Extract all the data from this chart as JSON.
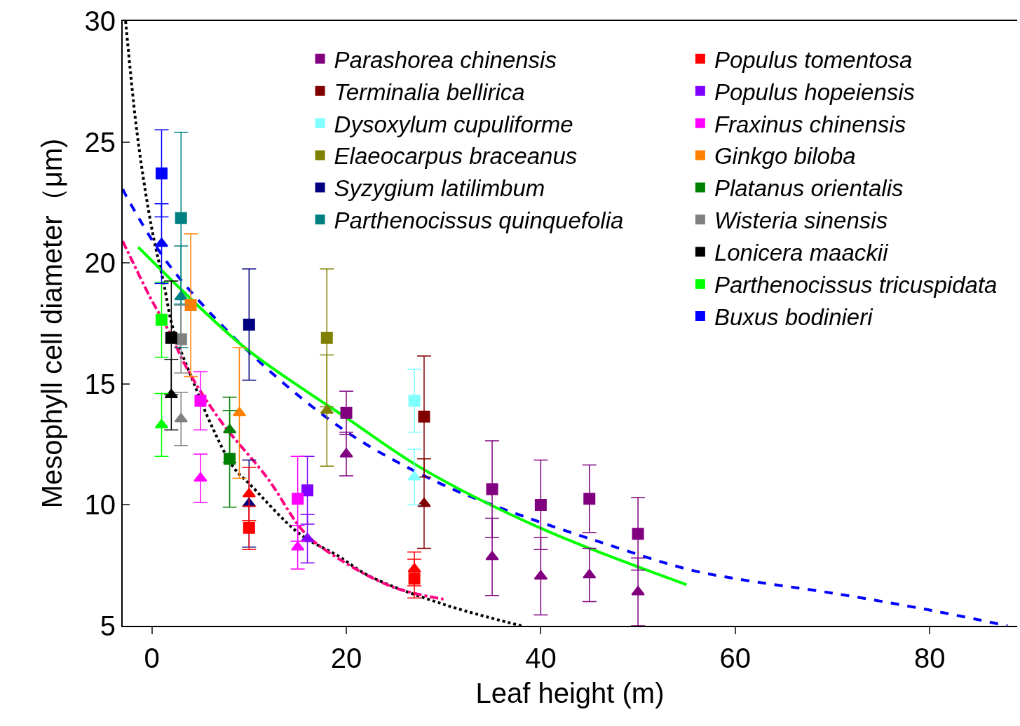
{
  "chart_data": {
    "type": "scatter",
    "xlabel": "Leaf height (m)",
    "ylabel": "Mesophyll cell diameter（μm)",
    "xlim": [
      -3,
      89
    ],
    "xticks": [
      0,
      20,
      40,
      60,
      80
    ],
    "ylim": [
      5,
      30
    ],
    "yticks": [
      5,
      10,
      15,
      20,
      25,
      30
    ],
    "legend": "top right",
    "series": [
      {
        "name": "Parashorea chinensis",
        "color": "#800080",
        "marker": "square",
        "x": [
          20,
          35,
          40,
          45,
          50
        ],
        "values": [
          13.8,
          10.65,
          10.0,
          10.25,
          8.8
        ],
        "errors": [
          0.9,
          2.0,
          1.85,
          1.4,
          1.5
        ]
      },
      {
        "color": "#800080",
        "marker": "triangle",
        "x": [
          20,
          35,
          40,
          45,
          50
        ],
        "values": [
          12.1,
          7.85,
          7.05,
          7.1,
          6.4
        ],
        "errors": [
          0.9,
          1.6,
          1.6,
          1.1,
          1.4
        ]
      },
      {
        "name": "Terminalia bellirica",
        "color": "#800000",
        "marker": "square",
        "x": [
          28
        ],
        "values": [
          13.65
        ],
        "errors": [
          2.5
        ]
      },
      {
        "color": "#800000",
        "marker": "triangle",
        "x": [
          28
        ],
        "values": [
          10.05
        ],
        "errors": [
          1.85
        ]
      },
      {
        "name": "Dysoxylum cupuliforme",
        "color": "#80ffff",
        "marker": "square",
        "x": [
          27
        ],
        "values": [
          14.3
        ],
        "errors": [
          1.3
        ]
      },
      {
        "color": "#80ffff",
        "marker": "triangle",
        "x": [
          27
        ],
        "values": [
          11.15
        ],
        "errors": [
          1.15
        ]
      },
      {
        "name": "Elaeocarpus braceanus",
        "color": "#808000",
        "marker": "square",
        "x": [
          18
        ],
        "values": [
          16.9
        ],
        "errors": [
          2.85
        ]
      },
      {
        "color": "#808000",
        "marker": "triangle",
        "x": [
          18
        ],
        "values": [
          13.9
        ],
        "errors": [
          2.3
        ]
      },
      {
        "name": "Syzygium latilimbum",
        "color": "#000080",
        "marker": "square",
        "x": [
          10
        ],
        "values": [
          17.45
        ],
        "errors": [
          2.3
        ]
      },
      {
        "color": "#000080",
        "marker": "triangle",
        "x": [
          10
        ],
        "values": [
          10.05
        ],
        "errors": [
          1.8
        ]
      },
      {
        "name": "Parthenocissus quinquefolia",
        "color": "#008080",
        "marker": "square",
        "x": [
          3
        ],
        "values": [
          21.85
        ],
        "errors": [
          3.55
        ]
      },
      {
        "color": "#008080",
        "marker": "triangle",
        "x": [
          3
        ],
        "values": [
          18.6
        ],
        "errors": [
          2.1
        ]
      },
      {
        "name": "Populus tomentosa",
        "color": "#ff0000",
        "marker": "square",
        "x": [
          10,
          27
        ],
        "values": [
          9.05,
          6.95
        ],
        "errors": [
          0.9,
          0.8
        ]
      },
      {
        "color": "#ff0000",
        "marker": "triangle",
        "x": [
          10,
          27
        ],
        "values": [
          10.45,
          7.35
        ],
        "errors": [
          1.1,
          0.7
        ]
      },
      {
        "name": "Populus hopeiensis",
        "color": "#8000ff",
        "marker": "square",
        "x": [
          16
        ],
        "values": [
          10.6
        ],
        "errors": [
          1.4
        ]
      },
      {
        "color": "#8000ff",
        "marker": "triangle",
        "x": [
          16
        ],
        "values": [
          8.6
        ],
        "errors": [
          1.0
        ]
      },
      {
        "name": "Fraxinus chinensis",
        "color": "#ff00ff",
        "marker": "square",
        "x": [
          5,
          15
        ],
        "values": [
          14.3,
          10.25
        ],
        "errors": [
          1.2,
          1.75
        ]
      },
      {
        "color": "#ff00ff",
        "marker": "triangle",
        "x": [
          5,
          15
        ],
        "values": [
          11.1,
          8.25
        ],
        "errors": [
          1.0,
          0.9
        ]
      },
      {
        "name": "Ginkgo biloba",
        "color": "#ff8000",
        "marker": "square",
        "x": [
          4
        ],
        "values": [
          18.25
        ],
        "errors": [
          2.95
        ]
      },
      {
        "color": "#ff8000",
        "marker": "triangle",
        "x": [
          9
        ],
        "values": [
          13.8
        ],
        "errors": [
          2.7
        ]
      },
      {
        "name": "Platanus orientalis",
        "color": "#008000",
        "marker": "square",
        "x": [
          8
        ],
        "values": [
          11.9
        ],
        "errors": [
          2.0
        ]
      },
      {
        "color": "#008000",
        "marker": "triangle",
        "x": [
          8
        ],
        "values": [
          13.1
        ],
        "errors": [
          1.35
        ]
      },
      {
        "name": "Wisteria sinensis",
        "color": "#808080",
        "marker": "square",
        "x": [
          3
        ],
        "values": [
          16.85
        ],
        "errors": [
          1.4
        ]
      },
      {
        "color": "#808080",
        "marker": "triangle",
        "x": [
          3
        ],
        "values": [
          13.55
        ],
        "errors": [
          1.1
        ]
      },
      {
        "name": "Lonicera maackii",
        "color": "#000000",
        "marker": "square",
        "x": [
          2
        ],
        "values": [
          16.9
        ],
        "errors": [
          2.35
        ]
      },
      {
        "color": "#000000",
        "marker": "triangle",
        "x": [
          2
        ],
        "values": [
          14.55
        ],
        "errors": [
          1.45
        ]
      },
      {
        "name": "Parthenocissus tricuspidata",
        "color": "#00ff00",
        "marker": "square",
        "x": [
          1
        ],
        "values": [
          17.65
        ],
        "errors": [
          1.55
        ]
      },
      {
        "color": "#00ff00",
        "marker": "triangle",
        "x": [
          1
        ],
        "values": [
          13.3
        ],
        "errors": [
          1.3
        ]
      },
      {
        "name": "Buxus bodinieri",
        "color": "#0000ff",
        "marker": "square",
        "x": [
          1
        ],
        "values": [
          23.7
        ],
        "errors": [
          1.8
        ]
      },
      {
        "color": "#0000ff",
        "marker": "triangle",
        "x": [
          1
        ],
        "values": [
          20.8
        ],
        "errors": [
          1.65
        ]
      },
      {
        "type": "line",
        "color": "#000000",
        "line_style": "dotted",
        "x": [
          -2.7,
          -1.65,
          -0.7,
          0.2,
          1.2,
          2.2,
          4.1,
          6.0,
          8.4,
          10.2,
          15.2,
          19.1,
          22.4,
          29.9,
          38.0
        ],
        "values": [
          30,
          25.8,
          23.05,
          21.0,
          19.2,
          17.25,
          15.25,
          13.4,
          11.55,
          10.8,
          8.8,
          7.9,
          7.05,
          5.9,
          5.0
        ]
      },
      {
        "type": "line",
        "color": "#ff0080",
        "line_style": "dashdot",
        "x": [
          -3,
          -2.4,
          -0.2,
          1.65,
          3.8,
          7.2,
          11.9,
          15.7,
          19.1,
          24.8,
          30.0
        ],
        "values": [
          20.9,
          20.4,
          18.6,
          17.25,
          15.5,
          13.4,
          11.1,
          8.85,
          7.8,
          6.6,
          6.1
        ]
      },
      {
        "type": "line",
        "color": "#0000ff",
        "line_style": "dashed",
        "x": [
          -3,
          -2.2,
          1.9,
          10.3,
          20.1,
          29.3,
          36.0,
          45.8,
          55.0,
          60.0,
          70.0,
          80.0,
          88.0
        ],
        "values": [
          23.05,
          22.45,
          19.85,
          16.2,
          13.0,
          10.95,
          9.85,
          8.5,
          7.35,
          6.95,
          6.35,
          5.65,
          5.0
        ]
      },
      {
        "type": "line",
        "color": "#00ff00",
        "line_style": "solid",
        "x": [
          -1.4,
          9.1,
          15.5,
          20.0,
          27.8,
          39.9,
          55.0
        ],
        "values": [
          20.65,
          16.65,
          14.8,
          13.6,
          11.5,
          9.05,
          6.7
        ]
      }
    ]
  }
}
